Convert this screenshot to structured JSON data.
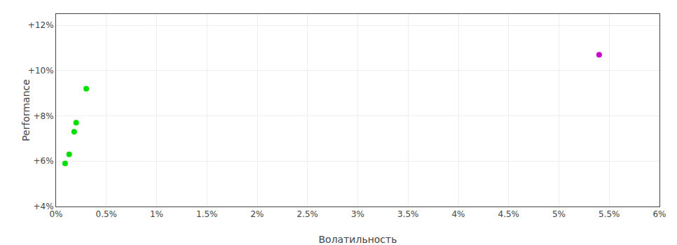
{
  "chart_data": {
    "type": "scatter",
    "xlabel": "Волатильность",
    "ylabel": "Performance",
    "series": [
      {
        "color": "#00dd00",
        "x": [
          0.003,
          0.002,
          0.0018,
          0.0013,
          0.0009
        ],
        "values": [
          0.092,
          0.077,
          0.073,
          0.063,
          0.059
        ]
      },
      {
        "color": "#cc00cc",
        "x": [
          0.054
        ],
        "values": [
          0.107
        ]
      }
    ],
    "xlim": [
      0.0,
      0.06
    ],
    "ylim": [
      0.04,
      0.125
    ],
    "xticks": [
      {
        "value": 0.0,
        "label": "0%"
      },
      {
        "value": 0.005,
        "label": "0.5%"
      },
      {
        "value": 0.01,
        "label": "1%"
      },
      {
        "value": 0.015,
        "label": "1.5%"
      },
      {
        "value": 0.02,
        "label": "2%"
      },
      {
        "value": 0.025,
        "label": "2.5%"
      },
      {
        "value": 0.03,
        "label": "3%"
      },
      {
        "value": 0.035,
        "label": "3.5%"
      },
      {
        "value": 0.04,
        "label": "4%"
      },
      {
        "value": 0.045,
        "label": "4.5%"
      },
      {
        "value": 0.05,
        "label": "5%"
      },
      {
        "value": 0.055,
        "label": "5.5%"
      },
      {
        "value": 0.06,
        "label": "6%"
      }
    ],
    "yticks": [
      {
        "value": 0.04,
        "label": "+4%"
      },
      {
        "value": 0.06,
        "label": "+6%"
      },
      {
        "value": 0.08,
        "label": "+8%"
      },
      {
        "value": 0.1,
        "label": "+10%"
      },
      {
        "value": 0.12,
        "label": "+12%"
      }
    ],
    "grid": true
  }
}
